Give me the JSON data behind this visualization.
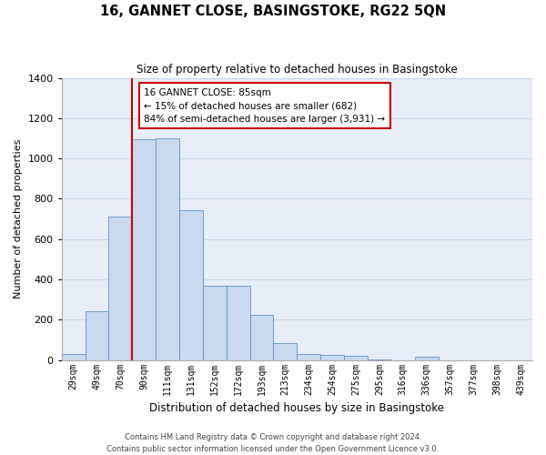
{
  "title1": "16, GANNET CLOSE, BASINGSTOKE, RG22 5QN",
  "title2": "Size of property relative to detached houses in Basingstoke",
  "xlabel": "Distribution of detached houses by size in Basingstoke",
  "ylabel": "Number of detached properties",
  "bar_labels": [
    "29sqm",
    "49sqm",
    "70sqm",
    "90sqm",
    "111sqm",
    "131sqm",
    "152sqm",
    "172sqm",
    "193sqm",
    "213sqm",
    "234sqm",
    "254sqm",
    "275sqm",
    "295sqm",
    "316sqm",
    "336sqm",
    "357sqm",
    "377sqm",
    "398sqm",
    "439sqm"
  ],
  "bar_heights": [
    30,
    240,
    710,
    1095,
    1100,
    745,
    370,
    370,
    225,
    85,
    30,
    25,
    20,
    5,
    0,
    15,
    0,
    0,
    0,
    0
  ],
  "bar_color": "#c9d9f0",
  "bar_edge_color": "#5b8fc9",
  "vline_color": "#cc0000",
  "ylim": [
    0,
    1400
  ],
  "yticks": [
    0,
    200,
    400,
    600,
    800,
    1000,
    1200,
    1400
  ],
  "annotation_title": "16 GANNET CLOSE: 85sqm",
  "annotation_line1": "← 15% of detached houses are smaller (682)",
  "annotation_line2": "84% of semi-detached houses are larger (3,931) →",
  "annotation_box_color": "#ffffff",
  "annotation_box_edge": "#cc0000",
  "footer1": "Contains HM Land Registry data © Crown copyright and database right 2024.",
  "footer2": "Contains public sector information licensed under the Open Government Licence v3.0.",
  "grid_color": "#c8d4e8",
  "background_color": "#e8eef8"
}
